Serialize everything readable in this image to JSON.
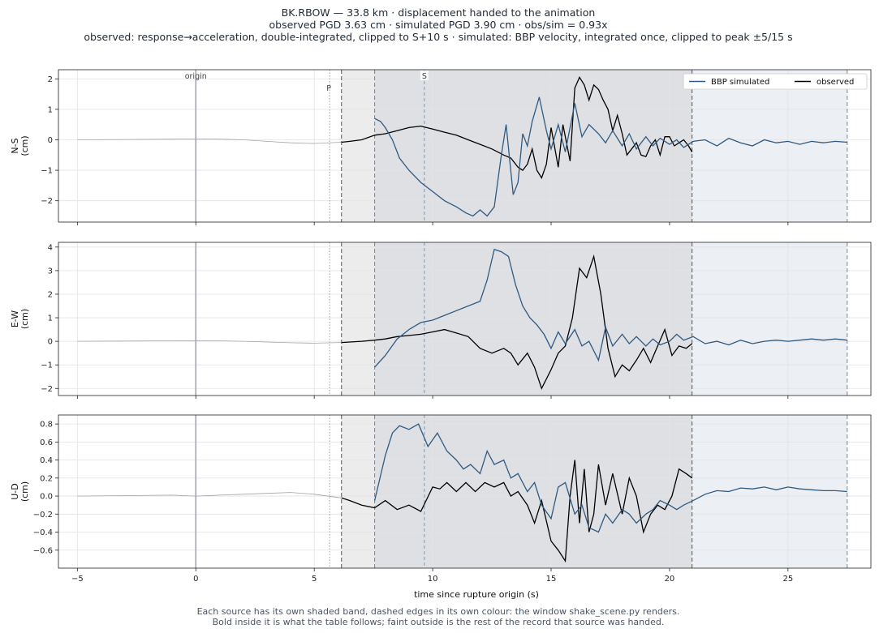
{
  "title": {
    "line1": "BK.RBOW  —  33.8 km   ·   displacement handed to the animation",
    "line2": "observed PGD 3.63 cm   ·   simulated PGD 3.90 cm   ·   obs/sim = 0.93x",
    "line3": "observed: response→acceleration, double-integrated, clipped to S+10 s   ·   simulated: BBP velocity, integrated once, clipped to peak ±5/15 s"
  },
  "footer": {
    "line1": "Each source has its own shaded band, dashed edges in its own colour: the window shake_scene.py renders.",
    "line2": "Bold inside it is what the table follows;   faint outside is the rest of the record that source was handed."
  },
  "colors": {
    "simulated": "#2f5a82",
    "observed": "#000000",
    "faint": "#a3a3a3",
    "origin": "#9ca3af"
  },
  "chart_data": {
    "type": "line",
    "xlabel": "time since rupture origin (s)",
    "xlim": [
      -5.8,
      28.5
    ],
    "xticks": [
      -5,
      0,
      5,
      10,
      15,
      20,
      25
    ],
    "grid": true,
    "legend": {
      "placement": "top-right",
      "entries": [
        "BBP simulated",
        "observed"
      ]
    },
    "markers": {
      "origin": 0,
      "origin_label": "origin",
      "P": 5.65,
      "P_label": "P",
      "S": 9.65,
      "S_label": "S"
    },
    "windows": {
      "observed": [
        6.15,
        20.95
      ],
      "simulated": [
        7.55,
        27.5
      ],
      "bold_range": [
        7.55,
        20.95
      ]
    },
    "panels": [
      {
        "ylabel": "N-S\n(cm)",
        "ylim": [
          -2.7,
          2.3
        ],
        "yticks": [
          -2,
          -1,
          0,
          1,
          2
        ],
        "series": [
          {
            "name": "observed",
            "x": [
              -5,
              -3,
              -1,
              0,
              1,
              2,
              3,
              4,
              5,
              6.15,
              6.5,
              7,
              7.55,
              8,
              8.5,
              9,
              9.5,
              10,
              10.5,
              11,
              11.5,
              12,
              12.5,
              13,
              13.3,
              13.6,
              13.8,
              14,
              14.2,
              14.4,
              14.6,
              14.8,
              15,
              15.3,
              15.5,
              15.8,
              16,
              16.2,
              16.4,
              16.6,
              16.8,
              17,
              17.2,
              17.4,
              17.6,
              17.8,
              18,
              18.2,
              18.4,
              18.6,
              18.8,
              19,
              19.2,
              19.4,
              19.6,
              19.8,
              20,
              20.2,
              20.4,
              20.6,
              20.8,
              20.95
            ],
            "y": [
              0,
              0.01,
              0.02,
              0.03,
              0.02,
              0,
              -0.05,
              -0.1,
              -0.12,
              -0.08,
              -0.05,
              0,
              0.15,
              0.2,
              0.3,
              0.4,
              0.45,
              0.35,
              0.25,
              0.15,
              0,
              -0.15,
              -0.3,
              -0.5,
              -0.6,
              -0.9,
              -1.0,
              -0.8,
              -0.3,
              -1.0,
              -1.25,
              -0.8,
              0.4,
              -0.9,
              0.5,
              -0.7,
              1.7,
              2.05,
              1.8,
              1.3,
              1.8,
              1.65,
              1.3,
              1.0,
              0.3,
              0.8,
              0.2,
              -0.5,
              -0.3,
              -0.1,
              -0.5,
              -0.55,
              -0.2,
              0.0,
              -0.5,
              0.1,
              0.1,
              -0.2,
              -0.1,
              0.0,
              -0.2,
              -0.4
            ]
          },
          {
            "name": "BBP simulated",
            "x": [
              7.55,
              7.8,
              8,
              8.3,
              8.6,
              9,
              9.5,
              10,
              10.5,
              11,
              11.4,
              11.7,
              12,
              12.3,
              12.6,
              12.9,
              13.1,
              13.4,
              13.6,
              13.8,
              14,
              14.2,
              14.5,
              14.8,
              15,
              15.3,
              15.6,
              16,
              16.3,
              16.6,
              17,
              17.3,
              17.6,
              18,
              18.3,
              18.6,
              19,
              19.3,
              19.6,
              20,
              20.3,
              20.6,
              21,
              21.5,
              22,
              22.5,
              23,
              23.5,
              24,
              24.5,
              25,
              25.5,
              26,
              26.5,
              27,
              27.5
            ],
            "y": [
              0.7,
              0.6,
              0.4,
              0,
              -0.6,
              -1.0,
              -1.4,
              -1.7,
              -2.0,
              -2.2,
              -2.4,
              -2.5,
              -2.3,
              -2.5,
              -2.2,
              -0.5,
              0.5,
              -1.8,
              -1.4,
              0.2,
              -0.2,
              0.6,
              1.4,
              0.3,
              -0.3,
              0.5,
              -0.4,
              1.2,
              0.1,
              0.5,
              0.2,
              -0.1,
              0.3,
              -0.2,
              0.2,
              -0.3,
              0.1,
              -0.2,
              0.05,
              -0.15,
              0.0,
              -0.25,
              -0.05,
              0.0,
              -0.2,
              0.05,
              -0.1,
              -0.2,
              0.0,
              -0.1,
              -0.05,
              -0.15,
              -0.05,
              -0.1,
              -0.05,
              -0.08
            ]
          }
        ]
      },
      {
        "ylabel": "E-W\n(cm)",
        "ylim": [
          -2.3,
          4.2
        ],
        "yticks": [
          -2,
          -1,
          0,
          1,
          2,
          3,
          4
        ],
        "series": [
          {
            "name": "observed",
            "x": [
              -5,
              -3,
              -1,
              0,
              1,
              2,
              3,
              4,
              5,
              6.15,
              7,
              7.55,
              8,
              8.5,
              9,
              9.5,
              10,
              10.5,
              11,
              11.5,
              12,
              12.5,
              13,
              13.3,
              13.6,
              14,
              14.3,
              14.6,
              15,
              15.3,
              15.6,
              15.9,
              16.2,
              16.5,
              16.8,
              17.1,
              17.4,
              17.7,
              18,
              18.3,
              18.6,
              18.9,
              19.2,
              19.5,
              19.8,
              20.1,
              20.4,
              20.7,
              20.95
            ],
            "y": [
              0,
              0.01,
              0.02,
              0.03,
              0.02,
              0,
              -0.03,
              -0.06,
              -0.08,
              -0.05,
              0.0,
              0.05,
              0.1,
              0.2,
              0.25,
              0.3,
              0.4,
              0.5,
              0.35,
              0.2,
              -0.3,
              -0.5,
              -0.3,
              -0.5,
              -1.0,
              -0.5,
              -1.1,
              -2.0,
              -1.2,
              -0.5,
              -0.2,
              1.0,
              3.1,
              2.7,
              3.6,
              2.0,
              -0.3,
              -1.5,
              -1.0,
              -1.25,
              -0.8,
              -0.3,
              -0.9,
              -0.2,
              0.5,
              -0.6,
              -0.2,
              -0.3,
              -0.1
            ]
          },
          {
            "name": "BBP simulated",
            "x": [
              7.55,
              8,
              8.5,
              9,
              9.5,
              10,
              10.5,
              11,
              11.5,
              12,
              12.3,
              12.6,
              12.9,
              13.2,
              13.5,
              13.8,
              14.1,
              14.4,
              14.7,
              15,
              15.3,
              15.6,
              16,
              16.3,
              16.6,
              17,
              17.3,
              17.6,
              18,
              18.3,
              18.6,
              19,
              19.3,
              19.6,
              20,
              20.3,
              20.6,
              21,
              21.5,
              22,
              22.5,
              23,
              23.5,
              24,
              24.5,
              25,
              25.5,
              26,
              26.5,
              27,
              27.5
            ],
            "y": [
              -1.1,
              -0.6,
              0.1,
              0.5,
              0.8,
              0.9,
              1.1,
              1.3,
              1.5,
              1.7,
              2.6,
              3.9,
              3.8,
              3.6,
              2.4,
              1.5,
              1.0,
              0.7,
              0.3,
              -0.3,
              0.4,
              -0.1,
              0.5,
              -0.2,
              0.0,
              -0.8,
              0.6,
              -0.2,
              0.3,
              -0.1,
              0.2,
              -0.2,
              0.1,
              -0.15,
              0.0,
              0.3,
              0.05,
              0.2,
              -0.1,
              0.0,
              -0.15,
              0.05,
              -0.1,
              0.0,
              0.05,
              0.0,
              0.05,
              0.1,
              0.05,
              0.1,
              0.05
            ]
          }
        ]
      },
      {
        "ylabel": "U-D\n(cm)",
        "ylim": [
          -0.8,
          0.9
        ],
        "yticks": [
          -0.6,
          -0.4,
          -0.2,
          0.0,
          0.2,
          0.4,
          0.6,
          0.8
        ],
        "series": [
          {
            "name": "observed",
            "x": [
              -5,
              -3,
              -1,
              0,
              1,
              2,
              3,
              4,
              5,
              6.15,
              6.5,
              7,
              7.55,
              8,
              8.5,
              9,
              9.5,
              10,
              10.3,
              10.6,
              11,
              11.4,
              11.8,
              12.2,
              12.6,
              13,
              13.3,
              13.6,
              14,
              14.3,
              14.6,
              15,
              15.3,
              15.6,
              15.8,
              16,
              16.2,
              16.4,
              16.6,
              16.8,
              17,
              17.3,
              17.6,
              18,
              18.3,
              18.6,
              18.9,
              19.2,
              19.5,
              19.8,
              20.1,
              20.4,
              20.7,
              20.95
            ],
            "y": [
              0,
              0.005,
              0.01,
              0.0,
              0.01,
              0.02,
              0.03,
              0.04,
              0.02,
              -0.02,
              -0.05,
              -0.1,
              -0.13,
              -0.05,
              -0.15,
              -0.1,
              -0.17,
              0.1,
              0.08,
              0.15,
              0.05,
              0.15,
              0.05,
              0.15,
              0.1,
              0.15,
              0.0,
              0.05,
              -0.1,
              -0.3,
              -0.05,
              -0.5,
              -0.6,
              -0.72,
              0.0,
              0.4,
              -0.3,
              0.3,
              -0.4,
              -0.2,
              0.35,
              -0.1,
              0.25,
              -0.2,
              0.2,
              0.0,
              -0.4,
              -0.2,
              -0.1,
              -0.15,
              0.0,
              0.3,
              0.25,
              0.2
            ]
          },
          {
            "name": "BBP simulated",
            "x": [
              7.55,
              8,
              8.3,
              8.6,
              9,
              9.4,
              9.8,
              10.2,
              10.6,
              11,
              11.3,
              11.6,
              12,
              12.3,
              12.6,
              13,
              13.3,
              13.6,
              14,
              14.3,
              14.6,
              15,
              15.3,
              15.6,
              16,
              16.3,
              16.6,
              17,
              17.3,
              17.6,
              18,
              18.3,
              18.6,
              19,
              19.3,
              19.6,
              20,
              20.3,
              20.6,
              21,
              21.5,
              22,
              22.5,
              23,
              23.5,
              24,
              24.5,
              25,
              25.5,
              26,
              26.5,
              27,
              27.5
            ],
            "y": [
              -0.05,
              0.45,
              0.7,
              0.78,
              0.74,
              0.8,
              0.55,
              0.7,
              0.5,
              0.4,
              0.3,
              0.35,
              0.25,
              0.5,
              0.35,
              0.4,
              0.2,
              0.25,
              0.05,
              0.15,
              -0.1,
              -0.25,
              0.1,
              0.15,
              -0.2,
              -0.1,
              -0.35,
              -0.4,
              -0.2,
              -0.3,
              -0.15,
              -0.2,
              -0.3,
              -0.2,
              -0.15,
              -0.05,
              -0.1,
              -0.15,
              -0.1,
              -0.05,
              0.02,
              0.06,
              0.05,
              0.09,
              0.08,
              0.1,
              0.07,
              0.1,
              0.08,
              0.07,
              0.06,
              0.06,
              0.05
            ]
          }
        ]
      }
    ]
  }
}
